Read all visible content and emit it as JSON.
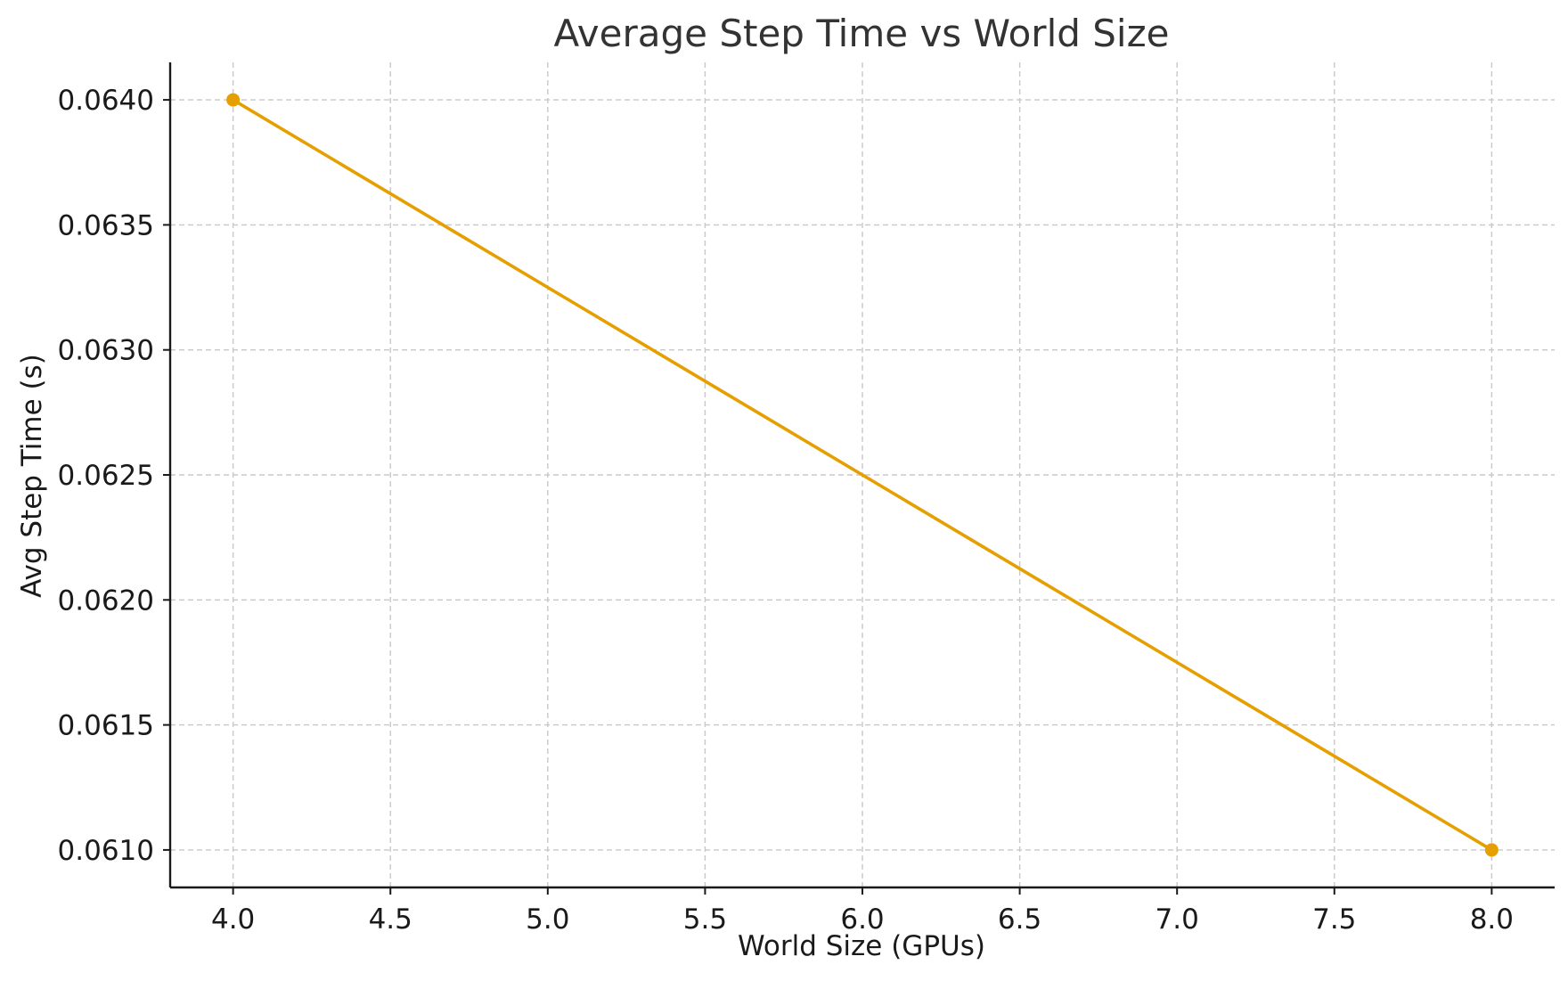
{
  "chart_data": {
    "type": "line",
    "title": "Average Step Time vs World Size",
    "xlabel": "World Size (GPUs)",
    "ylabel": "Avg Step Time (s)",
    "xlim": [
      3.8,
      8.2
    ],
    "ylim": [
      0.06085,
      0.06415
    ],
    "x_ticks": [
      4.0,
      4.5,
      5.0,
      5.5,
      6.0,
      6.5,
      7.0,
      7.5,
      8.0
    ],
    "x_tick_labels": [
      "4.0",
      "4.5",
      "5.0",
      "5.5",
      "6.0",
      "6.5",
      "7.0",
      "7.5",
      "8.0"
    ],
    "y_ticks": [
      0.061,
      0.0615,
      0.062,
      0.0625,
      0.063,
      0.0635,
      0.064
    ],
    "y_tick_labels": [
      "0.0610",
      "0.0615",
      "0.0620",
      "0.0625",
      "0.0630",
      "0.0635",
      "0.0640"
    ],
    "grid": true,
    "series": [
      {
        "x": [
          4,
          8
        ],
        "values": [
          0.064,
          0.061
        ],
        "color": "#E69F00",
        "marker": "circle"
      }
    ]
  }
}
